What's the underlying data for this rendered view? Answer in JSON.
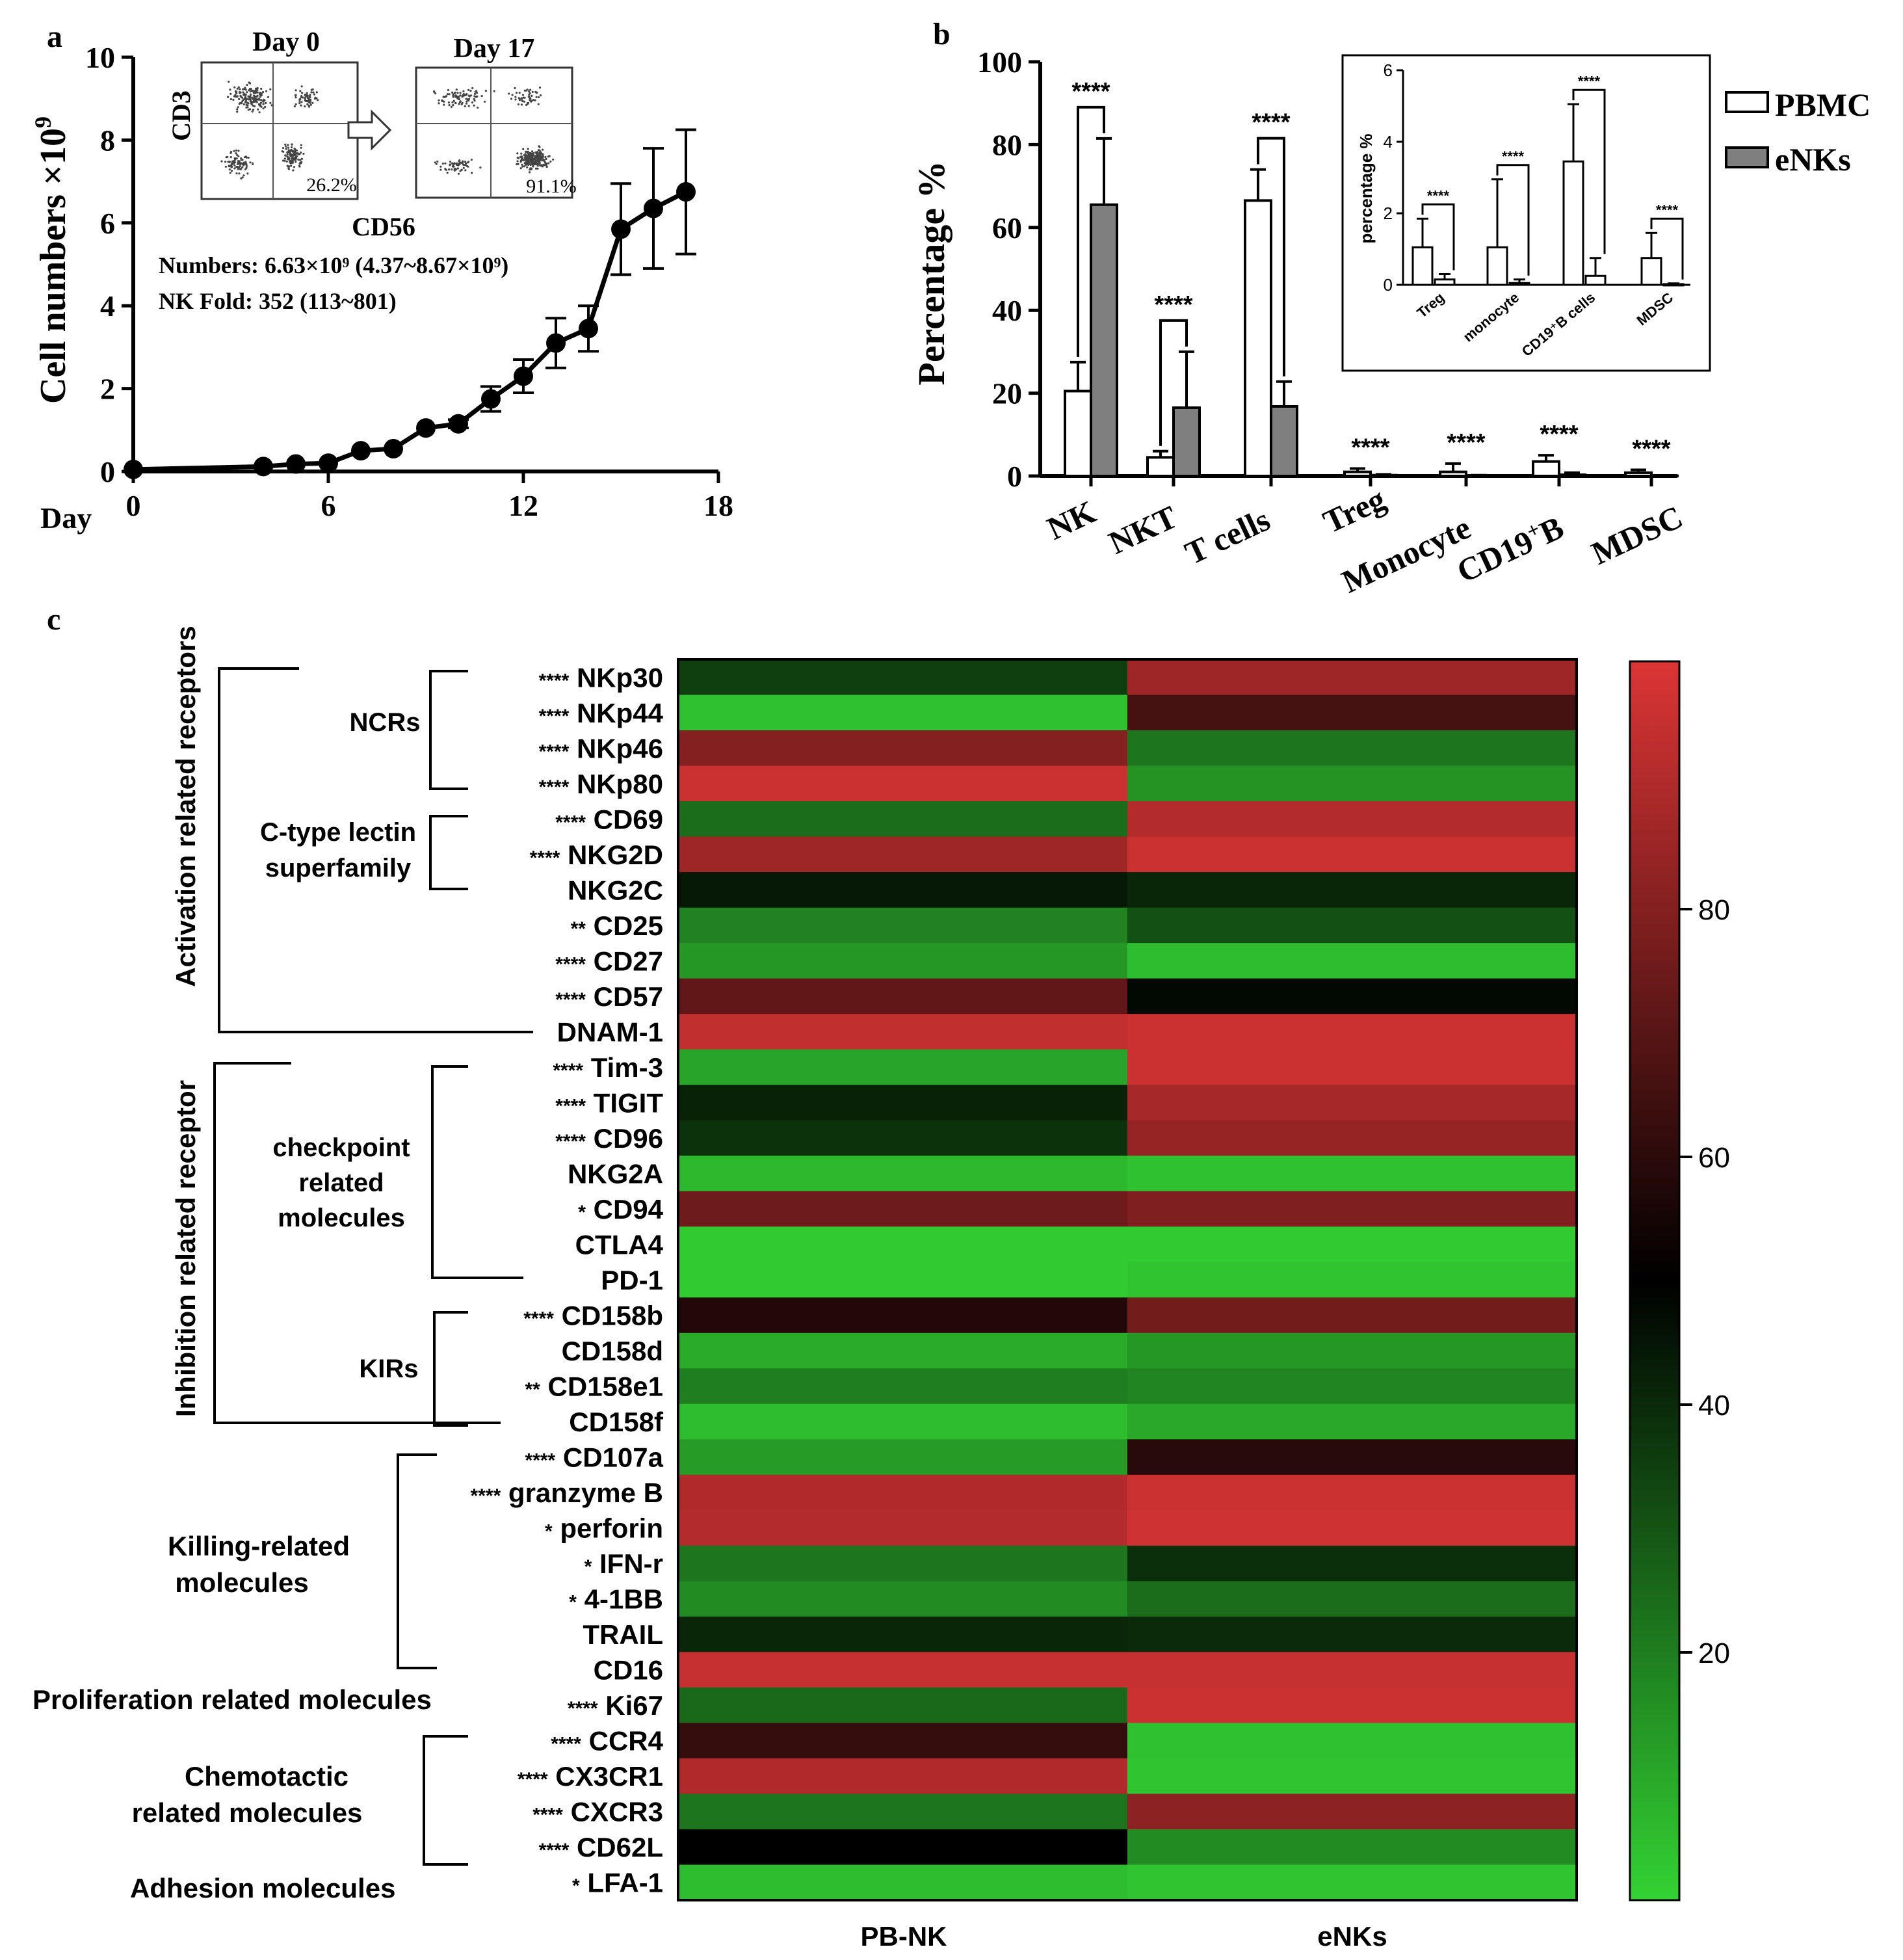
{
  "panel_labels": {
    "a": "a",
    "b": "b",
    "c": "c"
  },
  "chart_data": [
    {
      "type": "line",
      "panel": "a",
      "ylabel_main": "Cell numbers ×10",
      "ylabel_exp": "9",
      "xlabel_prefix": "Day",
      "xlim": [
        0,
        18
      ],
      "ylim": [
        0,
        10
      ],
      "x_ticks": [
        0,
        6,
        12,
        18
      ],
      "y_ticks": [
        0,
        2,
        4,
        6,
        8,
        10
      ],
      "x": [
        0,
        4,
        5,
        6,
        7,
        8,
        9,
        10,
        11,
        12,
        13,
        14,
        15,
        16,
        17
      ],
      "y": [
        0.05,
        0.12,
        0.18,
        0.2,
        0.5,
        0.55,
        1.05,
        1.15,
        1.75,
        2.3,
        3.1,
        3.45,
        5.85,
        6.35,
        6.75
      ],
      "err": [
        0,
        0,
        0,
        0,
        0,
        0,
        0,
        0.1,
        0.3,
        0.4,
        0.6,
        0.55,
        1.1,
        1.45,
        1.5
      ],
      "inset": {
        "left_title": "Day 0",
        "right_title": "Day 17",
        "y_axis": "CD3",
        "x_axis": "CD56",
        "left_value": "26.2%",
        "right_value": "91.1%"
      },
      "annotations": [
        "Numbers: 6.63×10⁹ (4.37~8.67×10⁹)",
        "NK Fold: 352 (113~801)"
      ]
    },
    {
      "type": "bar",
      "panel": "b",
      "ylabel": "Percentage  %",
      "ylim": [
        0,
        100
      ],
      "y_ticks": [
        0,
        20,
        40,
        60,
        80,
        100
      ],
      "categories": [
        "NK",
        "NKT",
        "T cells",
        "Treg",
        "Monocyte",
        "CD19+B",
        "MDSC"
      ],
      "series": [
        {
          "name": "PBMC",
          "values": [
            20.5,
            4.5,
            66.5,
            1.0,
            1.0,
            3.5,
            0.8
          ],
          "err": [
            7,
            1.5,
            7.5,
            0.8,
            2,
            1.5,
            0.7
          ]
        },
        {
          "name": "eNKs",
          "values": [
            65.5,
            16.5,
            16.8,
            0.2,
            0.1,
            0.3,
            0.05
          ],
          "err": [
            16,
            13.5,
            6,
            0.2,
            0.1,
            0.5,
            0.05
          ]
        }
      ],
      "significance": [
        "****",
        "****",
        "****",
        "****",
        "****",
        "****",
        "****"
      ],
      "legend": [
        "PBMC",
        "eNKs"
      ],
      "inset": {
        "ylabel": "percentage %",
        "ylim": [
          0,
          6
        ],
        "y_ticks": [
          0,
          2,
          4,
          6
        ],
        "categories": [
          "Treg",
          "monocyte",
          "CD19⁺B cells",
          "MDSC"
        ],
        "pbmc": [
          1.05,
          1.05,
          3.45,
          0.75
        ],
        "pbmc_err": [
          0.8,
          1.9,
          1.6,
          0.7
        ],
        "enks": [
          0.15,
          0.05,
          0.25,
          0.02
        ],
        "enks_err": [
          0.15,
          0.1,
          0.5,
          0.02
        ],
        "significance": [
          "****",
          "****",
          "****",
          "****"
        ]
      }
    },
    {
      "type": "heatmap",
      "panel": "c",
      "columns": [
        "PB-NK",
        "eNKs"
      ],
      "colorbar_ticks": [
        20,
        40,
        60,
        80
      ],
      "color_range": [
        0,
        100
      ],
      "rows": [
        {
          "label": "NKp30",
          "sig": "****",
          "values": [
            35,
            86
          ]
        },
        {
          "label": "NKp44",
          "sig": "****",
          "values": [
            4,
            66
          ]
        },
        {
          "label": "NKp46",
          "sig": "****",
          "values": [
            80,
            22
          ]
        },
        {
          "label": "NKp80",
          "sig": "****",
          "values": [
            96,
            15
          ]
        },
        {
          "label": "CD69",
          "sig": "****",
          "values": [
            24,
            91
          ]
        },
        {
          "label": "NKG2D",
          "sig": "****",
          "values": [
            86,
            96
          ]
        },
        {
          "label": "NKG2C",
          "sig": "",
          "values": [
            44,
            41
          ]
        },
        {
          "label": "CD25",
          "sig": "**",
          "values": [
            19,
            31
          ]
        },
        {
          "label": "CD27",
          "sig": "****",
          "values": [
            14,
            5
          ]
        },
        {
          "label": "CD57",
          "sig": "****",
          "values": [
            72,
            48
          ]
        },
        {
          "label": "DNAM-1",
          "sig": "",
          "values": [
            94,
            96
          ]
        },
        {
          "label": "Tim-3",
          "sig": "****",
          "values": [
            11,
            96
          ]
        },
        {
          "label": "TIGIT",
          "sig": "****",
          "values": [
            42,
            88
          ]
        },
        {
          "label": "CD96",
          "sig": "****",
          "values": [
            38,
            84
          ]
        },
        {
          "label": "NKG2A",
          "sig": "",
          "values": [
            6,
            4
          ]
        },
        {
          "label": "CD94",
          "sig": "*",
          "values": [
            75,
            79
          ]
        },
        {
          "label": "CTLA4",
          "sig": "",
          "values": [
            2,
            2
          ]
        },
        {
          "label": "PD-1",
          "sig": "",
          "values": [
            2,
            3
          ]
        },
        {
          "label": "CD158b",
          "sig": "****",
          "values": [
            58,
            76
          ]
        },
        {
          "label": "CD158d",
          "sig": "",
          "values": [
            9,
            14
          ]
        },
        {
          "label": "CD158e1",
          "sig": "**",
          "values": [
            20,
            18
          ]
        },
        {
          "label": "CD158f",
          "sig": "",
          "values": [
            5,
            10
          ]
        },
        {
          "label": "CD107a",
          "sig": "****",
          "values": [
            13,
            59
          ]
        },
        {
          "label": "granzyme B",
          "sig": "****",
          "values": [
            90,
            96
          ]
        },
        {
          "label": "perforin",
          "sig": "*",
          "values": [
            91,
            97
          ]
        },
        {
          "label": "IFN-r",
          "sig": "*",
          "values": [
            22,
            39
          ]
        },
        {
          "label": "4-1BB",
          "sig": "*",
          "values": [
            17,
            24
          ]
        },
        {
          "label": "TRAIL",
          "sig": "",
          "values": [
            41,
            40
          ]
        },
        {
          "label": "CD16",
          "sig": "",
          "values": [
            95,
            95
          ]
        },
        {
          "label": "Ki67",
          "sig": "****",
          "values": [
            25,
            96
          ]
        },
        {
          "label": "CCR4",
          "sig": "****",
          "values": [
            62,
            4
          ]
        },
        {
          "label": "CX3CR1",
          "sig": "****",
          "values": [
            90,
            3
          ]
        },
        {
          "label": "CXCR3",
          "sig": "****",
          "values": [
            22,
            82
          ]
        },
        {
          "label": "CD62L",
          "sig": "****",
          "values": [
            50,
            17
          ]
        },
        {
          "label": "LFA-1",
          "sig": "*",
          "values": [
            5,
            3
          ]
        }
      ],
      "groups_outer": [
        "Activation related receptors",
        "Inhibition related receptor"
      ],
      "groups_inner": [
        "NCRs",
        "C-type lectin",
        "superfamily",
        "checkpoint",
        "related",
        "molecules",
        "KIRs",
        "Killing-related",
        "molecules",
        "Proliferation related molecules",
        "Chemotactic",
        "related molecules",
        "Adhesion molecules"
      ]
    }
  ]
}
